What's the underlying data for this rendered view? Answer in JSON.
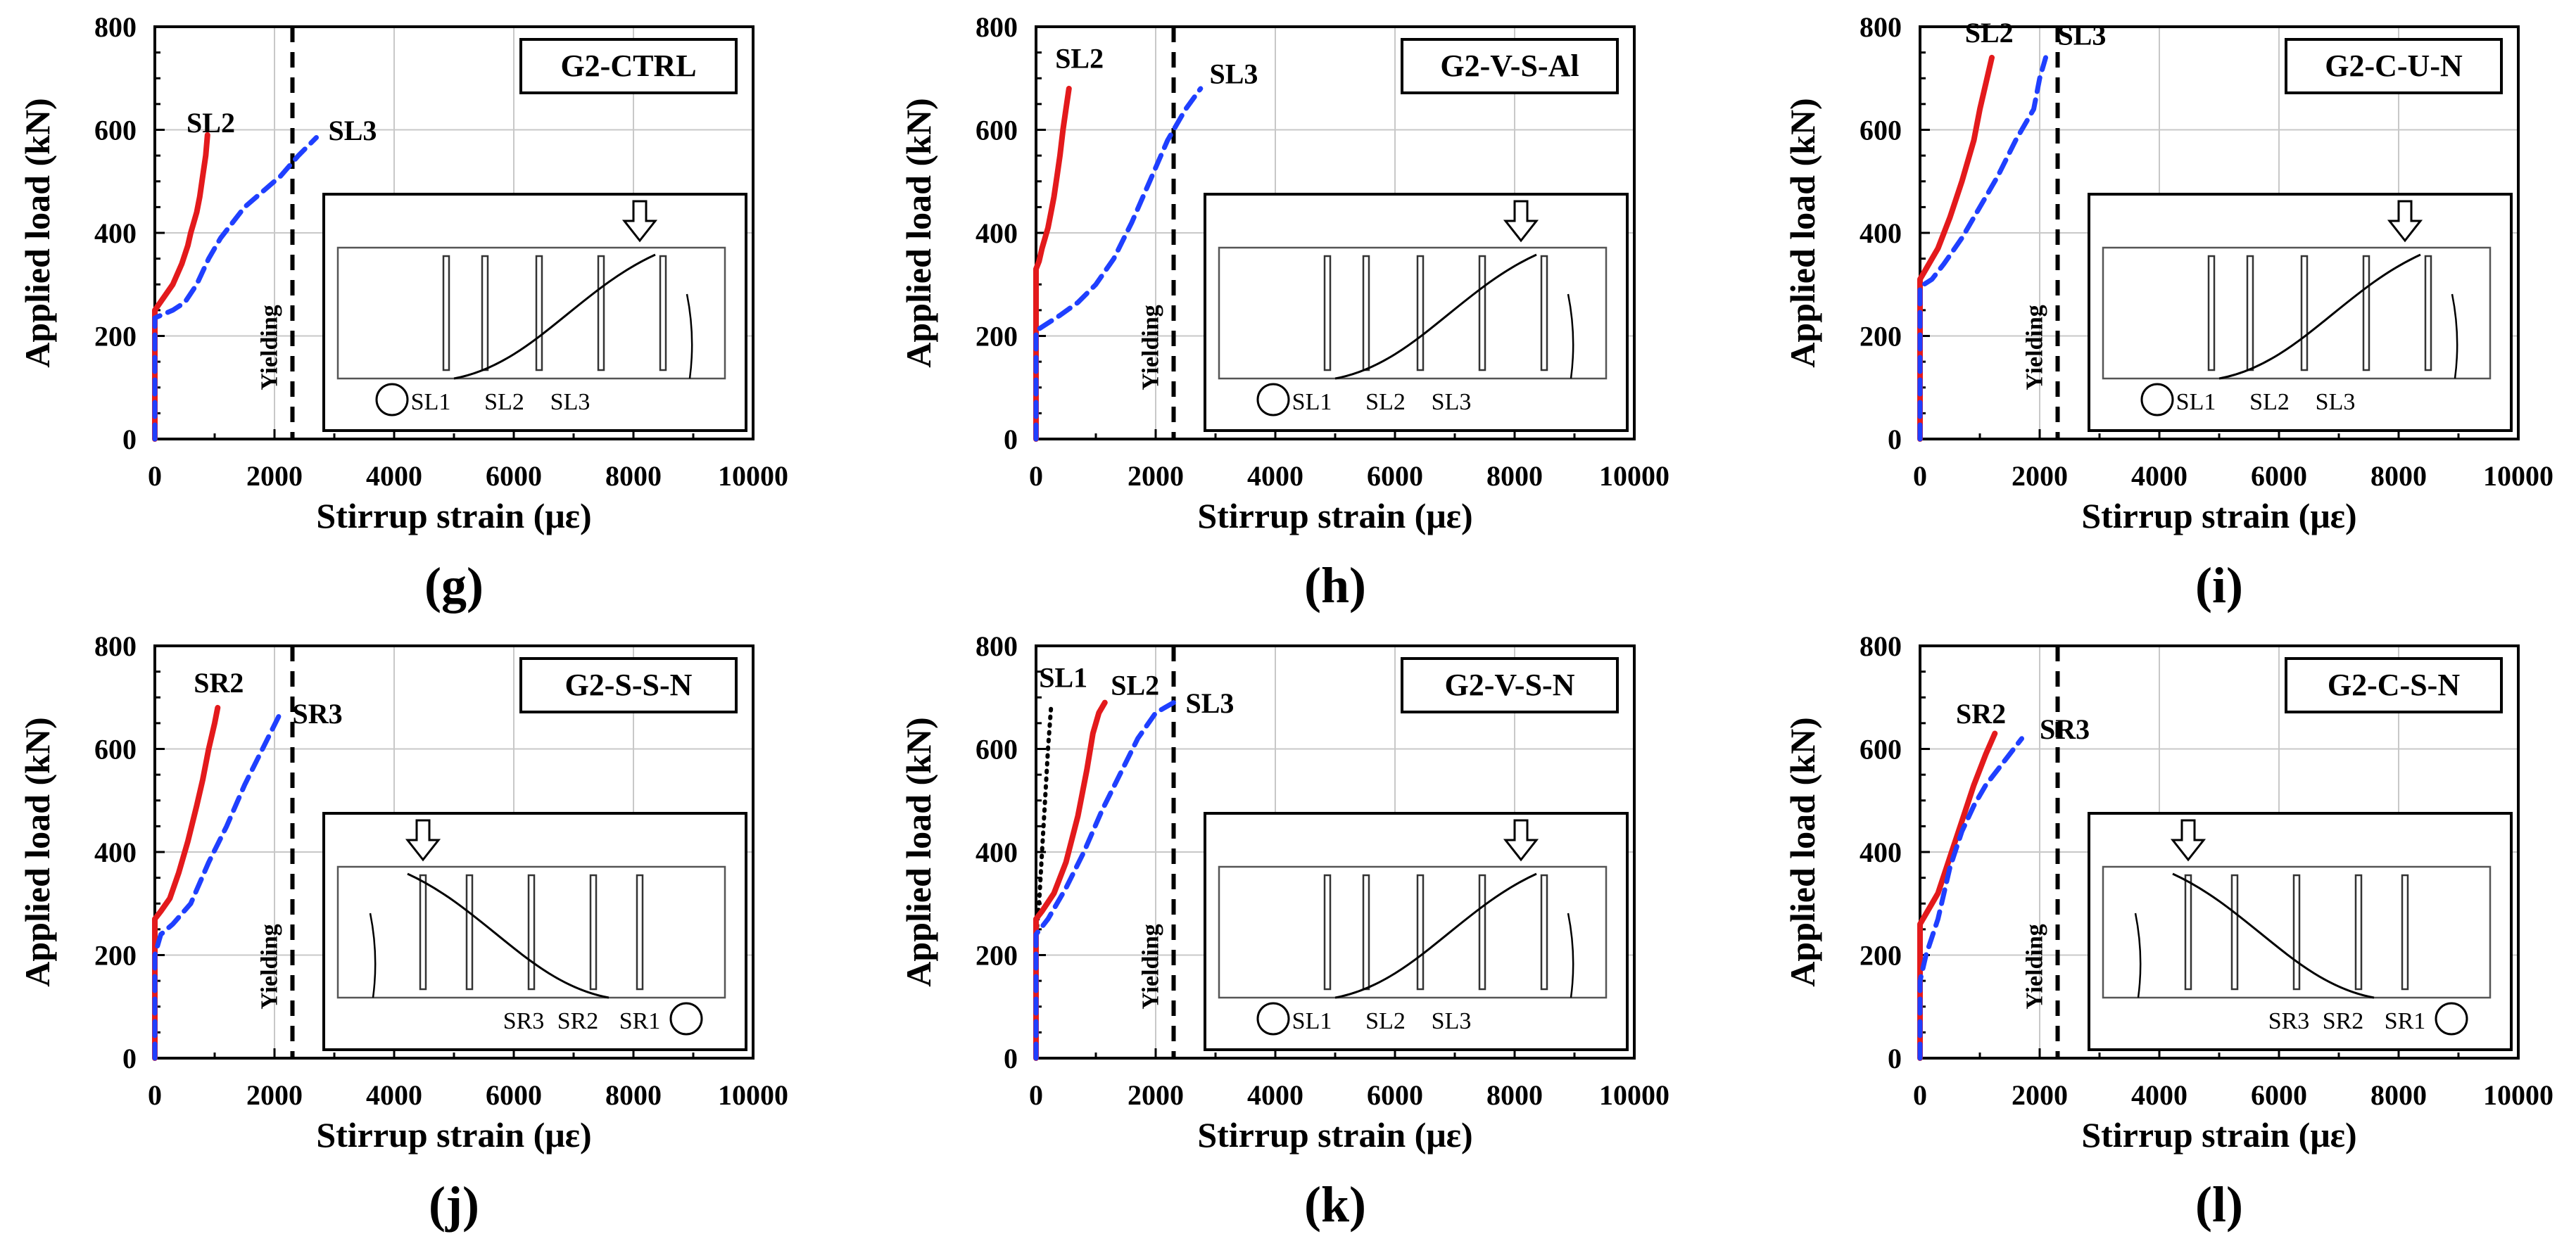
{
  "figure": {
    "common": {
      "xlabel": "Stirrup strain (με)",
      "ylabel": "Applied load (kN)",
      "xlim": [
        0,
        10000
      ],
      "ylim": [
        0,
        800
      ],
      "xticks": [
        0,
        2000,
        4000,
        6000,
        8000,
        10000
      ],
      "yticks": [
        0,
        200,
        400,
        600,
        800
      ],
      "yield_label": "Yielding",
      "yield_strain": 2300,
      "grid": true,
      "colors": {
        "red": "#e31a1c",
        "blue": "#1f3fff",
        "black": "#000000"
      }
    }
  },
  "chart_data": [
    {
      "type": "line",
      "panel_letter": "(g)",
      "box_label": "G2-CTRL",
      "series": [
        {
          "name": "SL2",
          "color": "red",
          "style": "solid",
          "x": [
            0,
            0,
            30,
            150,
            300,
            450,
            550,
            600,
            650,
            700,
            750,
            800,
            850,
            880
          ],
          "y": [
            0,
            250,
            255,
            275,
            300,
            340,
            375,
            400,
            420,
            440,
            470,
            510,
            550,
            590
          ]
        },
        {
          "name": "SL3",
          "color": "blue",
          "style": "dashed",
          "x": [
            0,
            0,
            100,
            300,
            500,
            700,
            900,
            1100,
            1300,
            1500,
            1800,
            2100,
            2400,
            2700
          ],
          "y": [
            0,
            235,
            240,
            250,
            265,
            300,
            350,
            390,
            420,
            450,
            480,
            510,
            550,
            585
          ]
        }
      ],
      "labels": [
        {
          "text": "SL2",
          "x": 530,
          "y": 595
        },
        {
          "text": "SL3",
          "x": 2900,
          "y": 580
        }
      ],
      "inset": {
        "arrow_at": 0.78,
        "support": "left",
        "strain_labels": [
          "SL1",
          "SL2",
          "SL3"
        ]
      }
    },
    {
      "type": "line",
      "panel_letter": "(h)",
      "box_label": "G2-V-S-Al",
      "series": [
        {
          "name": "SL2",
          "color": "red",
          "style": "solid",
          "x": [
            0,
            0,
            50,
            100,
            150,
            200,
            250,
            300,
            350,
            400,
            450,
            500,
            550
          ],
          "y": [
            0,
            330,
            345,
            370,
            390,
            410,
            440,
            470,
            510,
            550,
            600,
            640,
            680
          ]
        },
        {
          "name": "SL3",
          "color": "blue",
          "style": "dashed",
          "x": [
            0,
            0,
            200,
            400,
            700,
            1000,
            1300,
            1600,
            1900,
            2200,
            2500,
            2750
          ],
          "y": [
            0,
            210,
            225,
            240,
            265,
            300,
            350,
            420,
            500,
            580,
            640,
            680
          ]
        }
      ],
      "labels": [
        {
          "text": "SL2",
          "x": 320,
          "y": 720
        },
        {
          "text": "SL3",
          "x": 2900,
          "y": 690
        }
      ],
      "inset": {
        "arrow_at": 0.78,
        "support": "left",
        "strain_labels": [
          "SL1",
          "SL2",
          "SL3"
        ]
      }
    },
    {
      "type": "line",
      "panel_letter": "(i)",
      "box_label": "G2-C-U-N",
      "series": [
        {
          "name": "SL2",
          "color": "red",
          "style": "solid",
          "x": [
            0,
            0,
            100,
            300,
            500,
            700,
            900,
            1000,
            1100,
            1200
          ],
          "y": [
            0,
            310,
            330,
            370,
            430,
            500,
            580,
            640,
            690,
            740
          ]
        },
        {
          "name": "SL3",
          "color": "blue",
          "style": "dashed",
          "x": [
            0,
            0,
            200,
            400,
            700,
            1000,
            1300,
            1600,
            1900,
            2000,
            2100
          ],
          "y": [
            0,
            295,
            310,
            340,
            390,
            450,
            510,
            580,
            640,
            700,
            740
          ]
        }
      ],
      "labels": [
        {
          "text": "SL2",
          "x": 750,
          "y": 770
        },
        {
          "text": "SL3",
          "x": 2300,
          "y": 765
        }
      ],
      "inset": {
        "arrow_at": 0.78,
        "support": "left",
        "strain_labels": [
          "SL1",
          "SL2",
          "SL3"
        ]
      }
    },
    {
      "type": "line",
      "panel_letter": "(j)",
      "box_label": "G2-S-S-N",
      "series": [
        {
          "name": "SR2",
          "color": "red",
          "style": "solid",
          "x": [
            0,
            0,
            100,
            250,
            400,
            550,
            700,
            800,
            900,
            1000,
            1050
          ],
          "y": [
            0,
            270,
            285,
            310,
            360,
            420,
            490,
            540,
            600,
            650,
            680
          ]
        },
        {
          "name": "SR3",
          "color": "blue",
          "style": "dashed",
          "x": [
            0,
            0,
            100,
            300,
            600,
            900,
            1200,
            1500,
            1800,
            2100
          ],
          "y": [
            0,
            200,
            240,
            260,
            300,
            380,
            450,
            530,
            600,
            670
          ]
        }
      ],
      "labels": [
        {
          "text": "SR2",
          "x": 650,
          "y": 710
        },
        {
          "text": "SR3",
          "x": 2300,
          "y": 650
        }
      ],
      "inset": {
        "arrow_at": 0.22,
        "support": "right",
        "strain_labels": [
          "SR3",
          "SR2",
          "SR1"
        ]
      }
    },
    {
      "type": "line",
      "panel_letter": "(k)",
      "box_label": "G2-V-S-N",
      "series": [
        {
          "name": "SL1",
          "color": "black",
          "style": "dotted",
          "x": [
            0,
            0,
            50,
            100,
            150,
            200,
            250
          ],
          "y": [
            0,
            230,
            300,
            400,
            500,
            600,
            680
          ]
        },
        {
          "name": "SL2",
          "color": "red",
          "style": "solid",
          "x": [
            0,
            0,
            100,
            300,
            500,
            700,
            850,
            950,
            1050,
            1150
          ],
          "y": [
            0,
            270,
            285,
            320,
            380,
            470,
            560,
            630,
            670,
            690
          ]
        },
        {
          "name": "SL3",
          "color": "blue",
          "style": "dashed",
          "x": [
            0,
            0,
            200,
            500,
            800,
            1100,
            1400,
            1700,
            2000,
            2300
          ],
          "y": [
            0,
            240,
            270,
            330,
            400,
            480,
            550,
            620,
            670,
            690
          ]
        }
      ],
      "labels": [
        {
          "text": "SL1",
          "x": 50,
          "y": 720
        },
        {
          "text": "SL2",
          "x": 1250,
          "y": 705
        },
        {
          "text": "SL3",
          "x": 2500,
          "y": 670
        }
      ],
      "inset": {
        "arrow_at": 0.78,
        "support": "left",
        "strain_labels": [
          "SL1",
          "SL2",
          "SL3"
        ]
      }
    },
    {
      "type": "line",
      "panel_letter": "(l)",
      "box_label": "G2-C-S-N",
      "series": [
        {
          "name": "SR2",
          "color": "red",
          "style": "solid",
          "x": [
            0,
            0,
            100,
            300,
            500,
            700,
            900,
            1100,
            1250
          ],
          "y": [
            0,
            260,
            280,
            320,
            390,
            460,
            530,
            590,
            630
          ]
        },
        {
          "name": "SR3",
          "color": "blue",
          "style": "dashed",
          "x": [
            0,
            0,
            100,
            300,
            500,
            700,
            900,
            1100,
            1300,
            1500,
            1700
          ],
          "y": [
            0,
            150,
            200,
            270,
            370,
            440,
            490,
            530,
            560,
            590,
            620
          ]
        }
      ],
      "labels": [
        {
          "text": "SR2",
          "x": 600,
          "y": 650
        },
        {
          "text": "SR3",
          "x": 2000,
          "y": 620
        }
      ],
      "inset": {
        "arrow_at": 0.22,
        "support": "right",
        "strain_labels": [
          "SR3",
          "SR2",
          "SR1"
        ]
      }
    }
  ]
}
